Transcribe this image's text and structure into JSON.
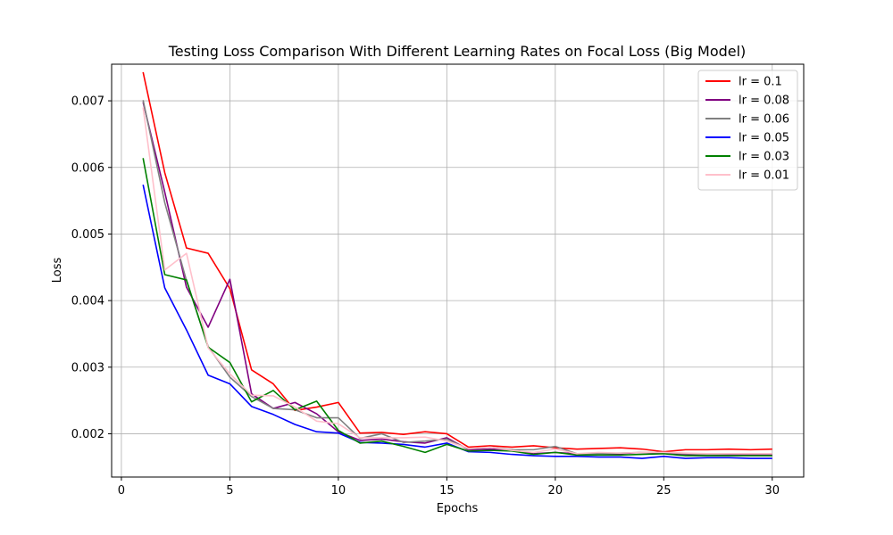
{
  "chart_data": {
    "type": "line",
    "title": "Testing Loss Comparison With Different Learning Rates on Focal Loss (Big Model)",
    "xlabel": "Epochs",
    "ylabel": "Loss",
    "xlim": [
      -0.45,
      31.45
    ],
    "ylim": [
      0.00135,
      0.00755
    ],
    "xticks": [
      0,
      5,
      10,
      15,
      20,
      25,
      30
    ],
    "yticks": [
      0.002,
      0.003,
      0.004,
      0.005,
      0.006,
      0.007
    ],
    "ytick_labels": [
      "0.002",
      "0.003",
      "0.004",
      "0.005",
      "0.006",
      "0.007"
    ],
    "grid": true,
    "legend_position": "top-right",
    "x": [
      1,
      2,
      3,
      4,
      5,
      6,
      7,
      8,
      9,
      10,
      11,
      12,
      13,
      14,
      15,
      16,
      17,
      18,
      19,
      20,
      21,
      22,
      23,
      24,
      25,
      26,
      27,
      28,
      29,
      30
    ],
    "series": [
      {
        "name": "lr = 0.1",
        "color": "#ff0000",
        "values": [
          0.00743,
          0.00592,
          0.00479,
          0.00471,
          0.00418,
          0.00296,
          0.00275,
          0.00235,
          0.0024,
          0.00247,
          0.00201,
          0.00202,
          0.00199,
          0.00203,
          0.002,
          0.0018,
          0.00182,
          0.0018,
          0.00182,
          0.00179,
          0.00177,
          0.00178,
          0.00179,
          0.00177,
          0.00173,
          0.00176,
          0.00176,
          0.00177,
          0.00176,
          0.00177
        ]
      },
      {
        "name": "lr = 0.08",
        "color": "#800080",
        "values": [
          0.00698,
          0.00563,
          0.0042,
          0.0036,
          0.00432,
          0.0026,
          0.00238,
          0.00247,
          0.0023,
          0.00203,
          0.0019,
          0.00192,
          0.00188,
          0.00186,
          0.00194,
          0.00176,
          0.00177,
          0.00176,
          0.0017,
          0.00172,
          0.0017,
          0.00169,
          0.0017,
          0.00172,
          0.00171,
          0.00169,
          0.00168,
          0.00168,
          0.00168,
          0.00168
        ]
      },
      {
        "name": "lr = 0.06",
        "color": "#808080",
        "values": [
          0.00701,
          0.00547,
          0.0043,
          0.00331,
          0.00285,
          0.00256,
          0.00238,
          0.00236,
          0.00224,
          0.00224,
          0.00193,
          0.002,
          0.00187,
          0.00189,
          0.00192,
          0.00177,
          0.0018,
          0.00176,
          0.00176,
          0.00181,
          0.0017,
          0.0017,
          0.00171,
          0.00172,
          0.00172,
          0.0017,
          0.00169,
          0.0017,
          0.0017,
          0.0017
        ]
      },
      {
        "name": "lr = 0.05",
        "color": "#0000ff",
        "values": [
          0.00574,
          0.00419,
          0.00356,
          0.00288,
          0.00275,
          0.00241,
          0.00229,
          0.00214,
          0.00203,
          0.00201,
          0.00187,
          0.00186,
          0.00184,
          0.0018,
          0.00186,
          0.00173,
          0.00172,
          0.00169,
          0.00167,
          0.00166,
          0.00166,
          0.00165,
          0.00165,
          0.00163,
          0.00166,
          0.00163,
          0.00164,
          0.00164,
          0.00163,
          0.00163
        ]
      },
      {
        "name": "lr = 0.03",
        "color": "#008000",
        "values": [
          0.00614,
          0.00439,
          0.00431,
          0.0033,
          0.00307,
          0.00248,
          0.00265,
          0.00236,
          0.00249,
          0.00205,
          0.00186,
          0.00189,
          0.00181,
          0.00172,
          0.00184,
          0.00174,
          0.00175,
          0.00174,
          0.00169,
          0.00172,
          0.00168,
          0.00168,
          0.00168,
          0.00169,
          0.0017,
          0.00167,
          0.00167,
          0.00167,
          0.00167,
          0.00167
        ]
      },
      {
        "name": "lr = 0.01",
        "color": "#ffc0cb",
        "values": [
          0.0069,
          0.00446,
          0.00471,
          0.00329,
          0.0029,
          0.00258,
          0.00257,
          0.0024,
          0.00219,
          0.00215,
          0.00194,
          0.00194,
          0.00194,
          0.00195,
          0.00189,
          0.00178,
          0.0018,
          0.00175,
          0.00172,
          0.00177,
          0.0017,
          0.00172,
          0.00171,
          0.00172,
          0.00172,
          0.00171,
          0.0017,
          0.0017,
          0.0017,
          0.0017
        ]
      }
    ]
  }
}
